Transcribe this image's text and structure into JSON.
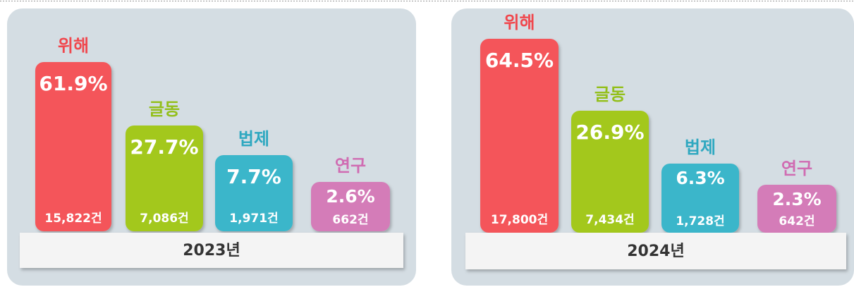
{
  "panels": [
    {
      "year": "2023년",
      "items": [
        {
          "name": "위해",
          "percent": "61.9%",
          "count": "15,822건"
        },
        {
          "name": "글동",
          "percent": "27.7%",
          "count": "7,086건"
        },
        {
          "name": "법제",
          "percent": "7.7%",
          "count": "1,971건"
        },
        {
          "name": "연구",
          "percent": "2.6%",
          "count": "662건"
        }
      ]
    },
    {
      "year": "2024년",
      "items": [
        {
          "name": "위해",
          "percent": "64.5%",
          "count": "17,800건"
        },
        {
          "name": "글동",
          "percent": "26.9%",
          "count": "7,434건"
        },
        {
          "name": "법제",
          "percent": "6.3%",
          "count": "1,728건"
        },
        {
          "name": "연구",
          "percent": "2.3%",
          "count": "642건"
        }
      ]
    }
  ]
}
